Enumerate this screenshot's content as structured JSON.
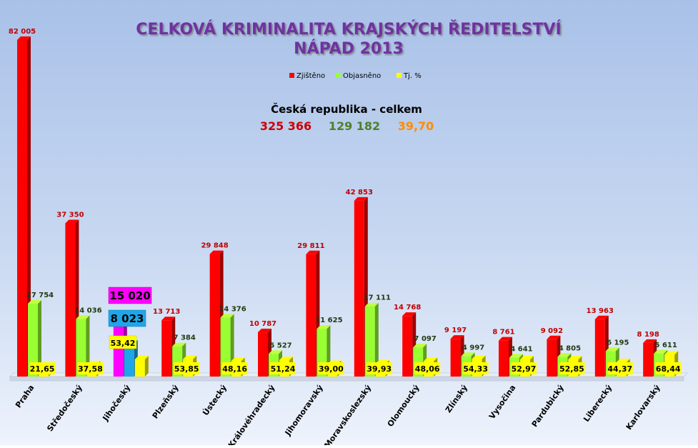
{
  "chart_data": {
    "type": "bar",
    "title": "CELKOVÁ KRIMINALITA KRAJSKÝCH ŘEDITELSTVÍ",
    "subtitle": "NÁPAD 2013",
    "legend": [
      {
        "name": "Zjištěno",
        "color": "#ff0000"
      },
      {
        "name": "Objasněno",
        "color": "#99ff33"
      },
      {
        "name": "Tj. %",
        "color": "#ffff00"
      }
    ],
    "legend_position": "top-center",
    "summary": {
      "label": "Česká republika - celkem",
      "detected": "325 366",
      "solved": "129 182",
      "percent": "39,70"
    },
    "categories": [
      "Praha",
      "Středočeský",
      "Jihočeský",
      "Plzeňský",
      "Ústecký",
      "Královéhradecký",
      "Jihomoravský",
      "Moravskoslezský",
      "Olomoucký",
      "Zlínský",
      "Vysočina",
      "Pardubický",
      "Liberecký",
      "Karlovarský"
    ],
    "series": [
      {
        "name": "Zjištěno",
        "values": [
          82005,
          37350,
          15020,
          13713,
          29848,
          10787,
          29811,
          42853,
          14768,
          9197,
          8761,
          9092,
          13963,
          8198
        ],
        "labels": [
          "82 005",
          "37 350",
          "15 020",
          "13 713",
          "29 848",
          "10 787",
          "29 811",
          "42 853",
          "14 768",
          "9 197",
          "8 761",
          "9 092",
          "13 963",
          "8 198"
        ]
      },
      {
        "name": "Objasněno",
        "values": [
          17754,
          14036,
          8023,
          7384,
          14376,
          5527,
          11625,
          17111,
          7097,
          4997,
          4641,
          4805,
          6195,
          5611
        ],
        "labels": [
          "17 754",
          "14 036",
          "8 023",
          "7 384",
          "14 376",
          "5 527",
          "11 625",
          "17 111",
          "7 097",
          "4 997",
          "4 641",
          "4 805",
          "6 195",
          "5 611"
        ]
      },
      {
        "name": "Tj. %",
        "values": [
          21.65,
          37.58,
          53.42,
          53.85,
          48.16,
          51.24,
          39.0,
          39.93,
          48.06,
          54.33,
          52.97,
          52.85,
          44.37,
          68.44
        ],
        "labels": [
          "21,65",
          "37,58",
          "53,42",
          "53,85",
          "48,16",
          "51,24",
          "39,00",
          "39,93",
          "48,06",
          "54,33",
          "52,97",
          "52,85",
          "44,37",
          "68,44"
        ]
      }
    ],
    "highlight": {
      "category": "Jihočeský",
      "detected_color": "#ff00ff",
      "solved_color": "#1ea7e8"
    },
    "ylim": [
      0,
      82005
    ],
    "grid": false
  }
}
